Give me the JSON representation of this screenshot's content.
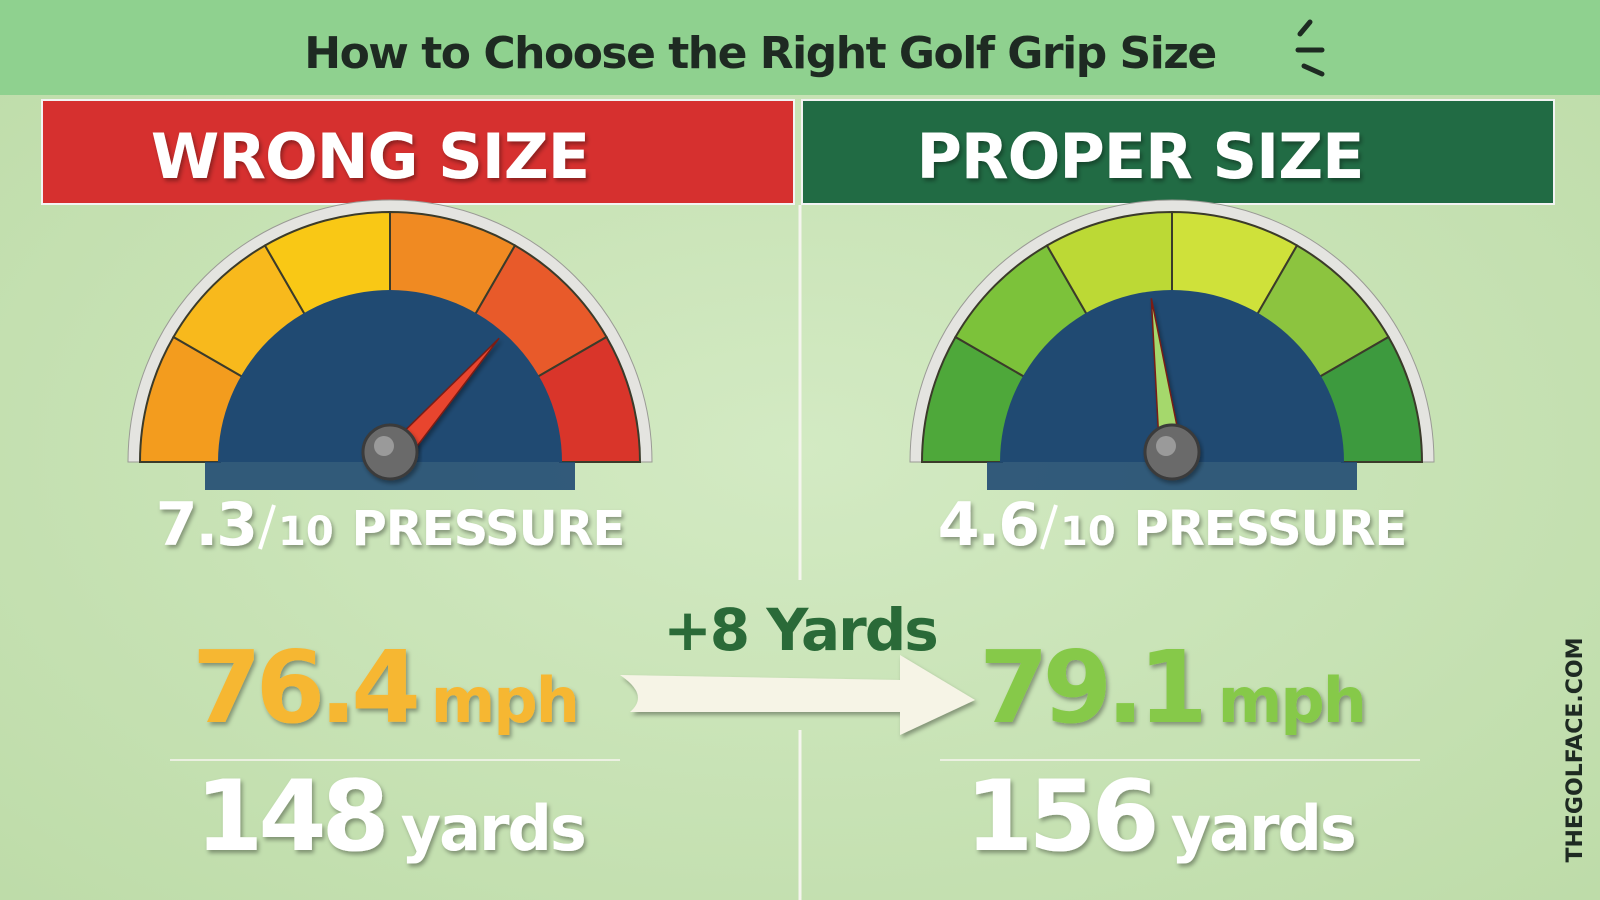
{
  "header": {
    "title": "How to Choose the Right Golf Grip Size"
  },
  "panels": [
    {
      "heading": "WRONG SIZE",
      "pressure": {
        "value": 7.3,
        "out_of": 10,
        "label": "PRESSURE"
      },
      "speed": {
        "value": 76.4,
        "unit": "mph"
      },
      "distance": {
        "value": 148,
        "unit": "yards"
      }
    },
    {
      "heading": "PROPER SIZE",
      "pressure": {
        "value": 4.6,
        "out_of": 10,
        "label": "PRESSURE"
      },
      "speed": {
        "value": 79.1,
        "unit": "mph"
      },
      "distance": {
        "value": 156,
        "unit": "yards"
      }
    }
  ],
  "gain": "+8 Yards",
  "watermark": "THEGOLFACE.COM"
}
